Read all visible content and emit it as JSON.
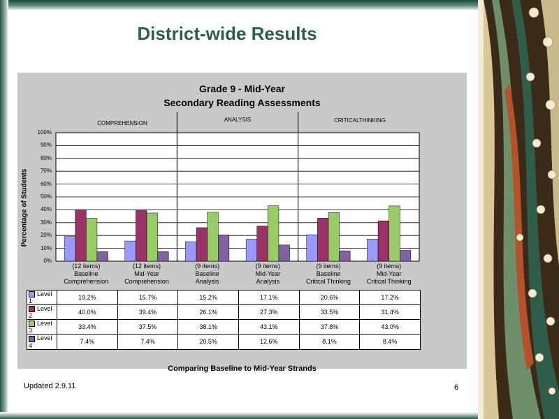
{
  "slide": {
    "title": "District-wide Results",
    "updated": "Updated 2.9.11",
    "page_number": "6"
  },
  "chart_data": {
    "type": "bar",
    "title": "Grade 9 - Mid-Year",
    "subtitle": "Secondary Reading Assessments",
    "ylabel": "Percentage of Students",
    "xlabel": "Comparing Baseline to Mid-Year Strands",
    "ylim": [
      0,
      100
    ],
    "yticks": [
      "0%",
      "10%",
      "20%",
      "30%",
      "40%",
      "50%",
      "60%",
      "70%",
      "80%",
      "90%",
      "100%"
    ],
    "grid": true,
    "groups": [
      "COMPREHENSION",
      "ANALYSIS",
      "CRITICALTHINKING"
    ],
    "categories": [
      [
        "(12 items)",
        "Baseline",
        "Comprehension"
      ],
      [
        "(12 items)",
        "Mid-Year",
        "Comprehension"
      ],
      [
        "(9 items)",
        "Baseline",
        "Analysis"
      ],
      [
        "(9 items)",
        "Mid-Year",
        "Analysis"
      ],
      [
        "(9 items)",
        "Baseline",
        "Critical Thinking"
      ],
      [
        "(9 items)",
        "Mid-Year",
        "Critical Thinking"
      ]
    ],
    "series": [
      {
        "name": "Level 1",
        "color": "#9999ff",
        "values": [
          19.2,
          15.7,
          15.2,
          17.1,
          20.6,
          17.2
        ],
        "labels": [
          "19.2%",
          "15.7%",
          "15.2%",
          "17.1%",
          "20.6%",
          "17.2%"
        ]
      },
      {
        "name": "Level 2",
        "color": "#993366",
        "values": [
          40.0,
          39.4,
          26.1,
          27.3,
          33.5,
          31.4
        ],
        "labels": [
          "40.0%",
          "39.4%",
          "26.1%",
          "27.3%",
          "33.5%",
          "31.4%"
        ]
      },
      {
        "name": "Level 3",
        "color": "#99cc66",
        "values": [
          33.4,
          37.5,
          38.1,
          43.1,
          37.8,
          43.0
        ],
        "labels": [
          "33.4%",
          "37.5%",
          "38.1%",
          "43.1%",
          "37.8%",
          "43.0%"
        ]
      },
      {
        "name": "Level 4",
        "color": "#8064a2",
        "values": [
          7.4,
          7.4,
          20.5,
          12.6,
          8.1,
          8.4
        ],
        "labels": [
          "7.4%",
          "7.4%",
          "20.5%",
          "12.6%",
          "8.1%",
          "8.4%"
        ]
      }
    ]
  }
}
